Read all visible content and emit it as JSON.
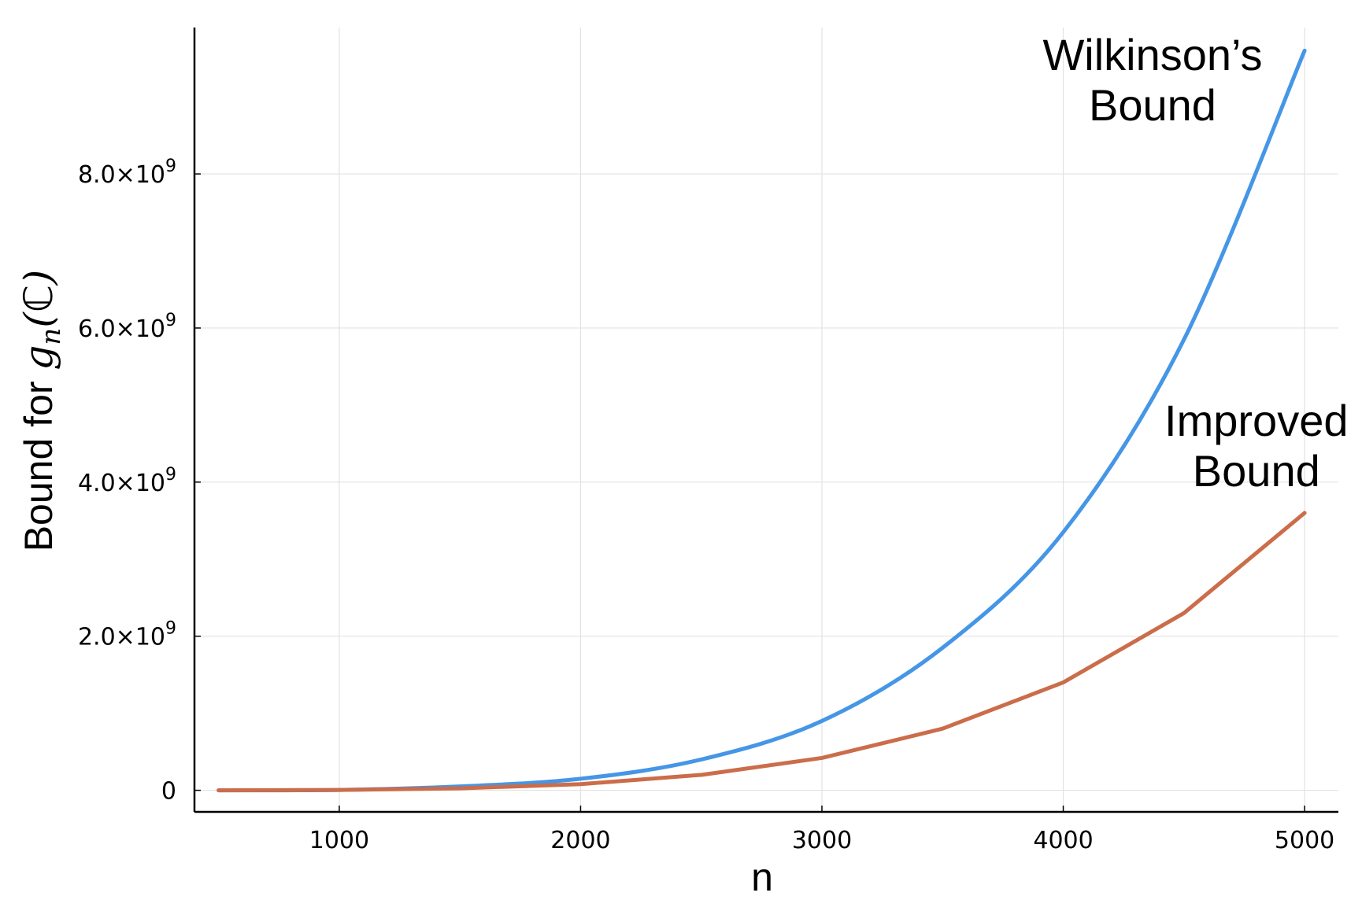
{
  "chart_data": {
    "type": "line",
    "title": "",
    "xlabel": "n",
    "ylabel": {
      "prefix": "Bound for ",
      "math_symbol": "g",
      "math_subscript": "n",
      "math_open": "(",
      "math_field": "ℂ",
      "math_close": ")"
    },
    "xlim": [
      400,
      5140
    ],
    "ylim": [
      -280000000,
      9900000000
    ],
    "grid": true,
    "legend": "none",
    "xticks": [
      {
        "value": 1000,
        "label": "1000"
      },
      {
        "value": 2000,
        "label": "2000"
      },
      {
        "value": 3000,
        "label": "3000"
      },
      {
        "value": 4000,
        "label": "4000"
      },
      {
        "value": 5000,
        "label": "5000"
      }
    ],
    "yticks": [
      {
        "value": 0,
        "mantissa": "0",
        "exponent": ""
      },
      {
        "value": 2000000000,
        "mantissa": "2.0×10",
        "exponent": "9"
      },
      {
        "value": 4000000000,
        "mantissa": "4.0×10",
        "exponent": "9"
      },
      {
        "value": 6000000000,
        "mantissa": "6.0×10",
        "exponent": "9"
      },
      {
        "value": 8000000000,
        "mantissa": "8.0×10",
        "exponent": "9"
      }
    ],
    "series": [
      {
        "color": "#4596e6",
        "x": [
          500,
          1000,
          1500,
          2000,
          2500,
          3000,
          3500,
          4000,
          4500,
          5000
        ],
        "y": [
          0,
          5000000,
          50000000,
          150000000,
          400000000,
          900000000,
          1850000000,
          3350000000,
          5850000000,
          9600000000
        ]
      },
      {
        "color": "#cb6d4a",
        "x": [
          500,
          1000,
          1500,
          2000,
          2500,
          3000,
          3500,
          4000,
          4500,
          5000
        ],
        "y": [
          0,
          5000000,
          25000000,
          80000000,
          200000000,
          420000000,
          800000000,
          1400000000,
          2300000000,
          3600000000
        ]
      }
    ],
    "annotations": [
      {
        "lines": [
          "Wilkinson’s",
          "Bound"
        ],
        "x": 4370,
        "y": 9350000000
      },
      {
        "lines": [
          "Improved",
          "Bound"
        ],
        "x": 4800,
        "y": 4600000000
      }
    ]
  }
}
